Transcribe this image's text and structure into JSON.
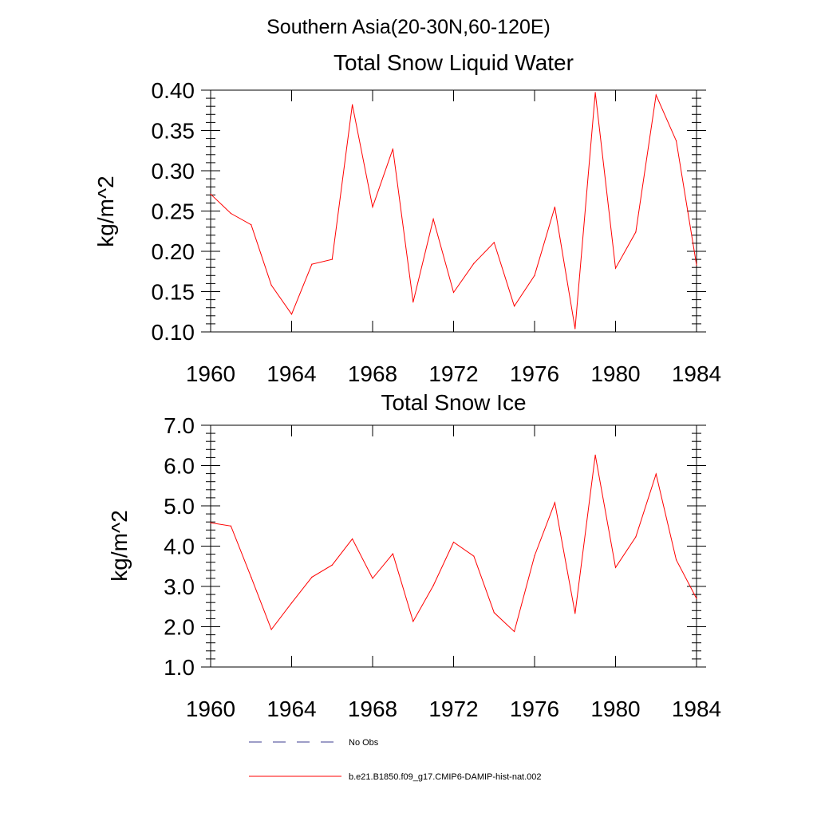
{
  "figure": {
    "title": "Southern Asia(20-30N,60-120E)"
  },
  "colors": {
    "model_line": "#ff0000",
    "obs_line": "#3b3b8f",
    "axis": "#000000"
  },
  "legend": {
    "placement": "bottom-center",
    "items": [
      {
        "label": "No Obs",
        "style": "dashed",
        "color": "#3b3b8f"
      },
      {
        "label": "b.e21.B1850.f09_g17.CMIP6-DAMIP-hist-nat.002",
        "style": "solid",
        "color": "#ff0000"
      }
    ]
  },
  "chart_data": [
    {
      "type": "line",
      "title": "Total Snow Liquid Water",
      "xlabel": "",
      "ylabel": "kg/m^2",
      "xlim": [
        1960,
        1984
      ],
      "ylim": [
        0.1,
        0.4
      ],
      "xticks": [
        1960,
        1964,
        1968,
        1972,
        1976,
        1980,
        1984
      ],
      "xtick_labels": [
        "1960",
        "1964",
        "1968",
        "1972",
        "1976",
        "1980",
        "1984"
      ],
      "yticks": [
        0.1,
        0.15,
        0.2,
        0.25,
        0.3,
        0.35,
        0.4
      ],
      "ytick_labels": [
        "0.10",
        "0.15",
        "0.20",
        "0.25",
        "0.30",
        "0.35",
        "0.40"
      ],
      "grid": false,
      "x": [
        1960,
        1961,
        1962,
        1963,
        1964,
        1965,
        1966,
        1967,
        1968,
        1969,
        1970,
        1971,
        1972,
        1973,
        1974,
        1975,
        1976,
        1977,
        1978,
        1979,
        1980,
        1981,
        1982,
        1983,
        1984
      ],
      "series": [
        {
          "name": "b.e21.B1850.f09_g17.CMIP6-DAMIP-hist-nat.002",
          "color": "#ff0000",
          "values": [
            0.271,
            0.247,
            0.233,
            0.158,
            0.122,
            0.184,
            0.19,
            0.382,
            0.255,
            0.327,
            0.137,
            0.24,
            0.149,
            0.185,
            0.211,
            0.132,
            0.17,
            0.255,
            0.104,
            0.397,
            0.179,
            0.224,
            0.394,
            0.337,
            0.183
          ]
        }
      ]
    },
    {
      "type": "line",
      "title": "Total Snow Ice",
      "xlabel": "",
      "ylabel": "kg/m^2",
      "xlim": [
        1960,
        1984
      ],
      "ylim": [
        1.0,
        7.0
      ],
      "xticks": [
        1960,
        1964,
        1968,
        1972,
        1976,
        1980,
        1984
      ],
      "xtick_labels": [
        "1960",
        "1964",
        "1968",
        "1972",
        "1976",
        "1980",
        "1984"
      ],
      "yticks": [
        1.0,
        2.0,
        3.0,
        4.0,
        5.0,
        6.0,
        7.0
      ],
      "ytick_labels": [
        "1.0",
        "2.0",
        "3.0",
        "4.0",
        "5.0",
        "6.0",
        "7.0"
      ],
      "grid": false,
      "x": [
        1960,
        1961,
        1962,
        1963,
        1964,
        1965,
        1966,
        1967,
        1968,
        1969,
        1970,
        1971,
        1972,
        1973,
        1974,
        1975,
        1976,
        1977,
        1978,
        1979,
        1980,
        1981,
        1982,
        1983,
        1984
      ],
      "series": [
        {
          "name": "b.e21.B1850.f09_g17.CMIP6-DAMIP-hist-nat.002",
          "color": "#ff0000",
          "values": [
            4.58,
            4.5,
            3.23,
            1.93,
            2.59,
            3.23,
            3.53,
            4.18,
            3.2,
            3.81,
            2.13,
            3.02,
            4.1,
            3.75,
            2.35,
            1.88,
            3.76,
            5.08,
            2.33,
            6.26,
            3.47,
            4.23,
            5.79,
            3.66,
            2.7
          ]
        }
      ]
    }
  ]
}
